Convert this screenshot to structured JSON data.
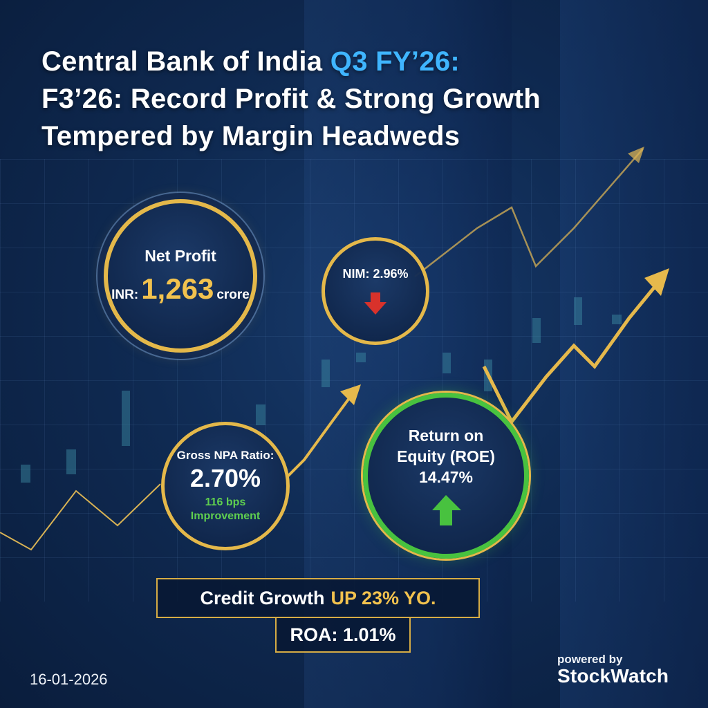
{
  "headline": {
    "line1_main": "Central Bank of India ",
    "line1_accent": "Q3 FY’26:",
    "line2": "F3’26: Record Profit & Strong Growth",
    "line3": "Tempered by Margin Headweds"
  },
  "net_profit": {
    "label": "Net Profit",
    "prefix": "INR:",
    "value": "1,263",
    "suffix": "crore"
  },
  "nim": {
    "label": "NIM: 2.96%",
    "trend_icon": "down-arrow-icon"
  },
  "gross_npa": {
    "label": "Gross NPA Ratio:",
    "value": "2.70%",
    "sub1": "116 bps",
    "sub2": "Improvement"
  },
  "roe": {
    "label1": "Return on",
    "label2": "Equity (ROE)",
    "value": "14.47%",
    "trend_icon": "up-arrow-icon"
  },
  "credit_growth": {
    "label": "Credit Growth",
    "accent": "UP 23% YO."
  },
  "roa": {
    "label": "ROA: 1.01%"
  },
  "footer": {
    "date": "16-01-2026",
    "powered_by": "powered by",
    "brand": "StockWatch"
  },
  "colors": {
    "gold": "#e4b84a",
    "accent_blue": "#3fb5ff",
    "green": "#48c23f",
    "red": "#d9322b",
    "background": "#0f2a52"
  }
}
